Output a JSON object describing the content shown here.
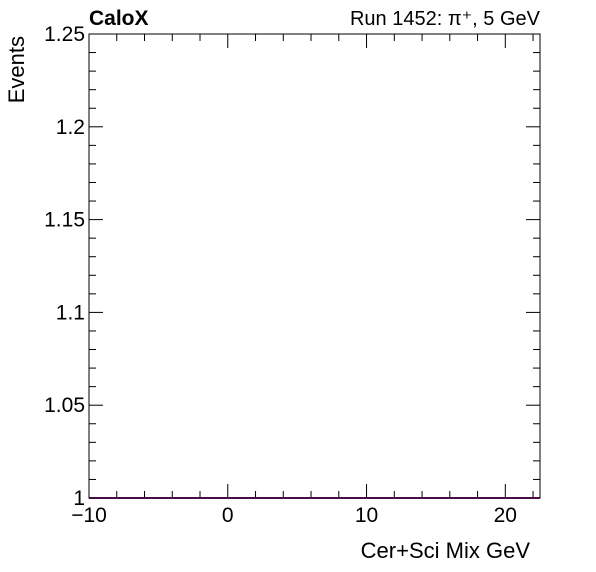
{
  "header": {
    "experiment": "CaloX",
    "run_info": "Run 1452: π⁺, 5 GeV"
  },
  "chart_data": {
    "type": "line",
    "title": "",
    "xlabel": "Cer+Sci Mix GeV",
    "ylabel": "Events",
    "xlim": [
      -10,
      22.5
    ],
    "ylim": [
      1.0,
      1.25
    ],
    "x_ticks": [
      {
        "value": -10,
        "label": "−10"
      },
      {
        "value": 0,
        "label": "0"
      },
      {
        "value": 10,
        "label": "10"
      },
      {
        "value": 20,
        "label": "20"
      }
    ],
    "y_ticks": [
      {
        "value": 1.0,
        "label": "1"
      },
      {
        "value": 1.05,
        "label": "1.05"
      },
      {
        "value": 1.1,
        "label": "1.1"
      },
      {
        "value": 1.15,
        "label": "1.15"
      },
      {
        "value": 1.2,
        "label": "1.2"
      },
      {
        "value": 1.25,
        "label": "1.25"
      }
    ],
    "grid": false,
    "series": [
      {
        "color": "#8b1a8b",
        "x": [
          -10,
          22.5
        ],
        "y": [
          1.0,
          1.0
        ]
      }
    ]
  }
}
